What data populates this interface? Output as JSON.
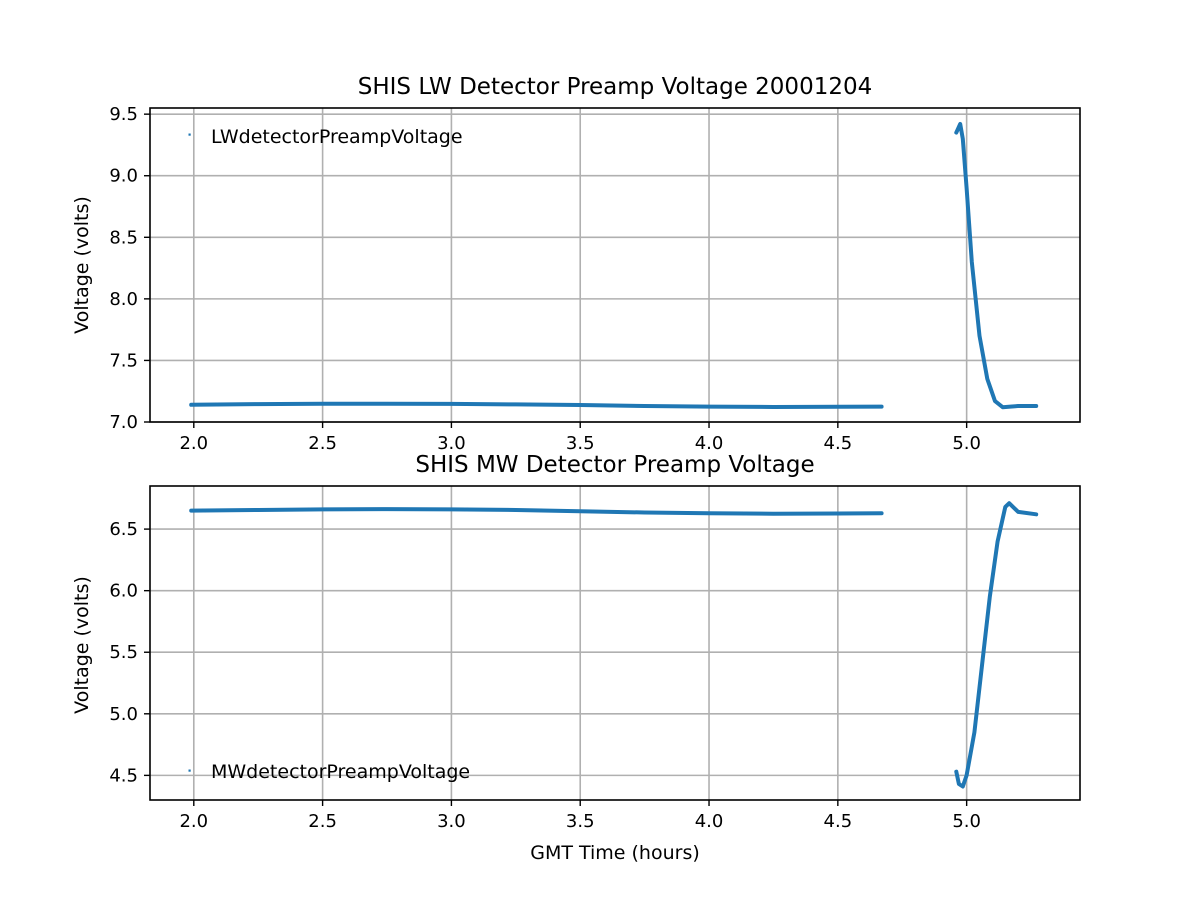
{
  "series_color": "#1f77b4",
  "chart_data": [
    {
      "type": "line",
      "title": "SHIS LW Detector Preamp Voltage 20001204",
      "xlabel": "",
      "ylabel": "Voltage (volts)",
      "xlim": [
        1.83,
        5.44
      ],
      "ylim": [
        7.0,
        9.55
      ],
      "xticks": [
        2.0,
        2.5,
        3.0,
        3.5,
        4.0,
        4.5,
        5.0
      ],
      "xtick_labels": [
        "2.0",
        "2.5",
        "3.0",
        "3.5",
        "4.0",
        "4.5",
        "5.0"
      ],
      "yticks": [
        7.0,
        7.5,
        8.0,
        8.5,
        9.0,
        9.5
      ],
      "ytick_labels": [
        "7.0",
        "7.5",
        "8.0",
        "8.5",
        "9.0",
        "9.5"
      ],
      "grid": true,
      "legend_position": "upper-left",
      "series": [
        {
          "name": "LWdetectorPreampVoltage",
          "segments": [
            {
              "x": [
                1.99,
                2.25,
                2.5,
                2.75,
                3.0,
                3.25,
                3.5,
                3.75,
                4.0,
                4.25,
                4.5,
                4.67
              ],
              "y": [
                7.14,
                7.145,
                7.148,
                7.148,
                7.147,
                7.143,
                7.138,
                7.13,
                7.125,
                7.122,
                7.124,
                7.125
              ]
            },
            {
              "x": [
                4.96,
                4.975,
                4.985,
                5.0,
                5.02,
                5.05,
                5.08,
                5.11,
                5.14,
                5.17,
                5.2,
                5.27
              ],
              "y": [
                9.35,
                9.42,
                9.3,
                8.9,
                8.3,
                7.7,
                7.35,
                7.17,
                7.12,
                7.125,
                7.13,
                7.13
              ]
            }
          ]
        }
      ]
    },
    {
      "type": "line",
      "title": "SHIS MW Detector Preamp Voltage",
      "xlabel": "GMT Time (hours)",
      "ylabel": "Voltage (volts)",
      "xlim": [
        1.83,
        5.44
      ],
      "ylim": [
        4.3,
        6.85
      ],
      "xticks": [
        2.0,
        2.5,
        3.0,
        3.5,
        4.0,
        4.5,
        5.0
      ],
      "xtick_labels": [
        "2.0",
        "2.5",
        "3.0",
        "3.5",
        "4.0",
        "4.5",
        "5.0"
      ],
      "yticks": [
        4.5,
        5.0,
        5.5,
        6.0,
        6.5
      ],
      "ytick_labels": [
        "4.5",
        "5.0",
        "5.5",
        "6.0",
        "6.5"
      ],
      "grid": true,
      "legend_position": "lower-left",
      "series": [
        {
          "name": "MWdetectorPreampVoltage",
          "segments": [
            {
              "x": [
                1.99,
                2.25,
                2.5,
                2.75,
                3.0,
                3.25,
                3.5,
                3.75,
                4.0,
                4.25,
                4.5,
                4.67
              ],
              "y": [
                6.65,
                6.655,
                6.66,
                6.662,
                6.66,
                6.655,
                6.645,
                6.635,
                6.628,
                6.625,
                6.627,
                6.628
              ]
            },
            {
              "x": [
                4.96,
                4.97,
                4.985,
                5.0,
                5.03,
                5.06,
                5.09,
                5.12,
                5.15,
                5.165,
                5.18,
                5.2,
                5.27
              ],
              "y": [
                4.53,
                4.43,
                4.41,
                4.5,
                4.85,
                5.4,
                5.95,
                6.4,
                6.68,
                6.71,
                6.68,
                6.64,
                6.62
              ]
            }
          ]
        }
      ]
    }
  ]
}
